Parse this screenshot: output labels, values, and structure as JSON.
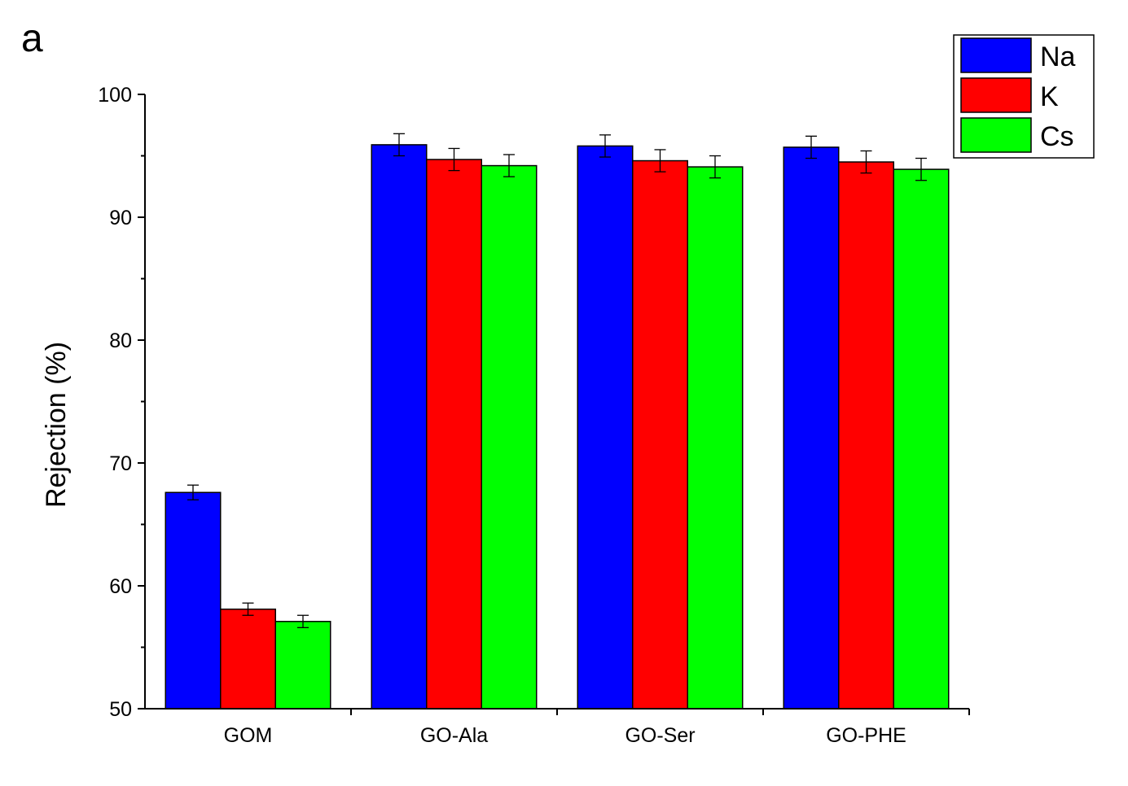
{
  "panel_label": "a",
  "chart_data": {
    "type": "bar",
    "title": "",
    "xlabel": "",
    "ylabel": "Rejection (%)",
    "ylim": [
      50,
      100
    ],
    "yticks": [
      50,
      60,
      70,
      80,
      90,
      100
    ],
    "grid": false,
    "legend_position": "top-right",
    "categories": [
      "GOM",
      "GO-Ala",
      "GO-Ser",
      "GO-PHE"
    ],
    "series": [
      {
        "name": "Na",
        "color": "#0000ff",
        "values": [
          67.6,
          95.9,
          95.8,
          95.7
        ],
        "errors": [
          0.6,
          0.9,
          0.9,
          0.9
        ]
      },
      {
        "name": "K",
        "color": "#ff0000",
        "values": [
          58.1,
          94.7,
          94.6,
          94.5
        ],
        "errors": [
          0.5,
          0.9,
          0.9,
          0.9
        ]
      },
      {
        "name": "Cs",
        "color": "#00ff00",
        "values": [
          57.1,
          94.2,
          94.1,
          93.9
        ],
        "errors": [
          0.5,
          0.9,
          0.9,
          0.9
        ]
      }
    ]
  }
}
